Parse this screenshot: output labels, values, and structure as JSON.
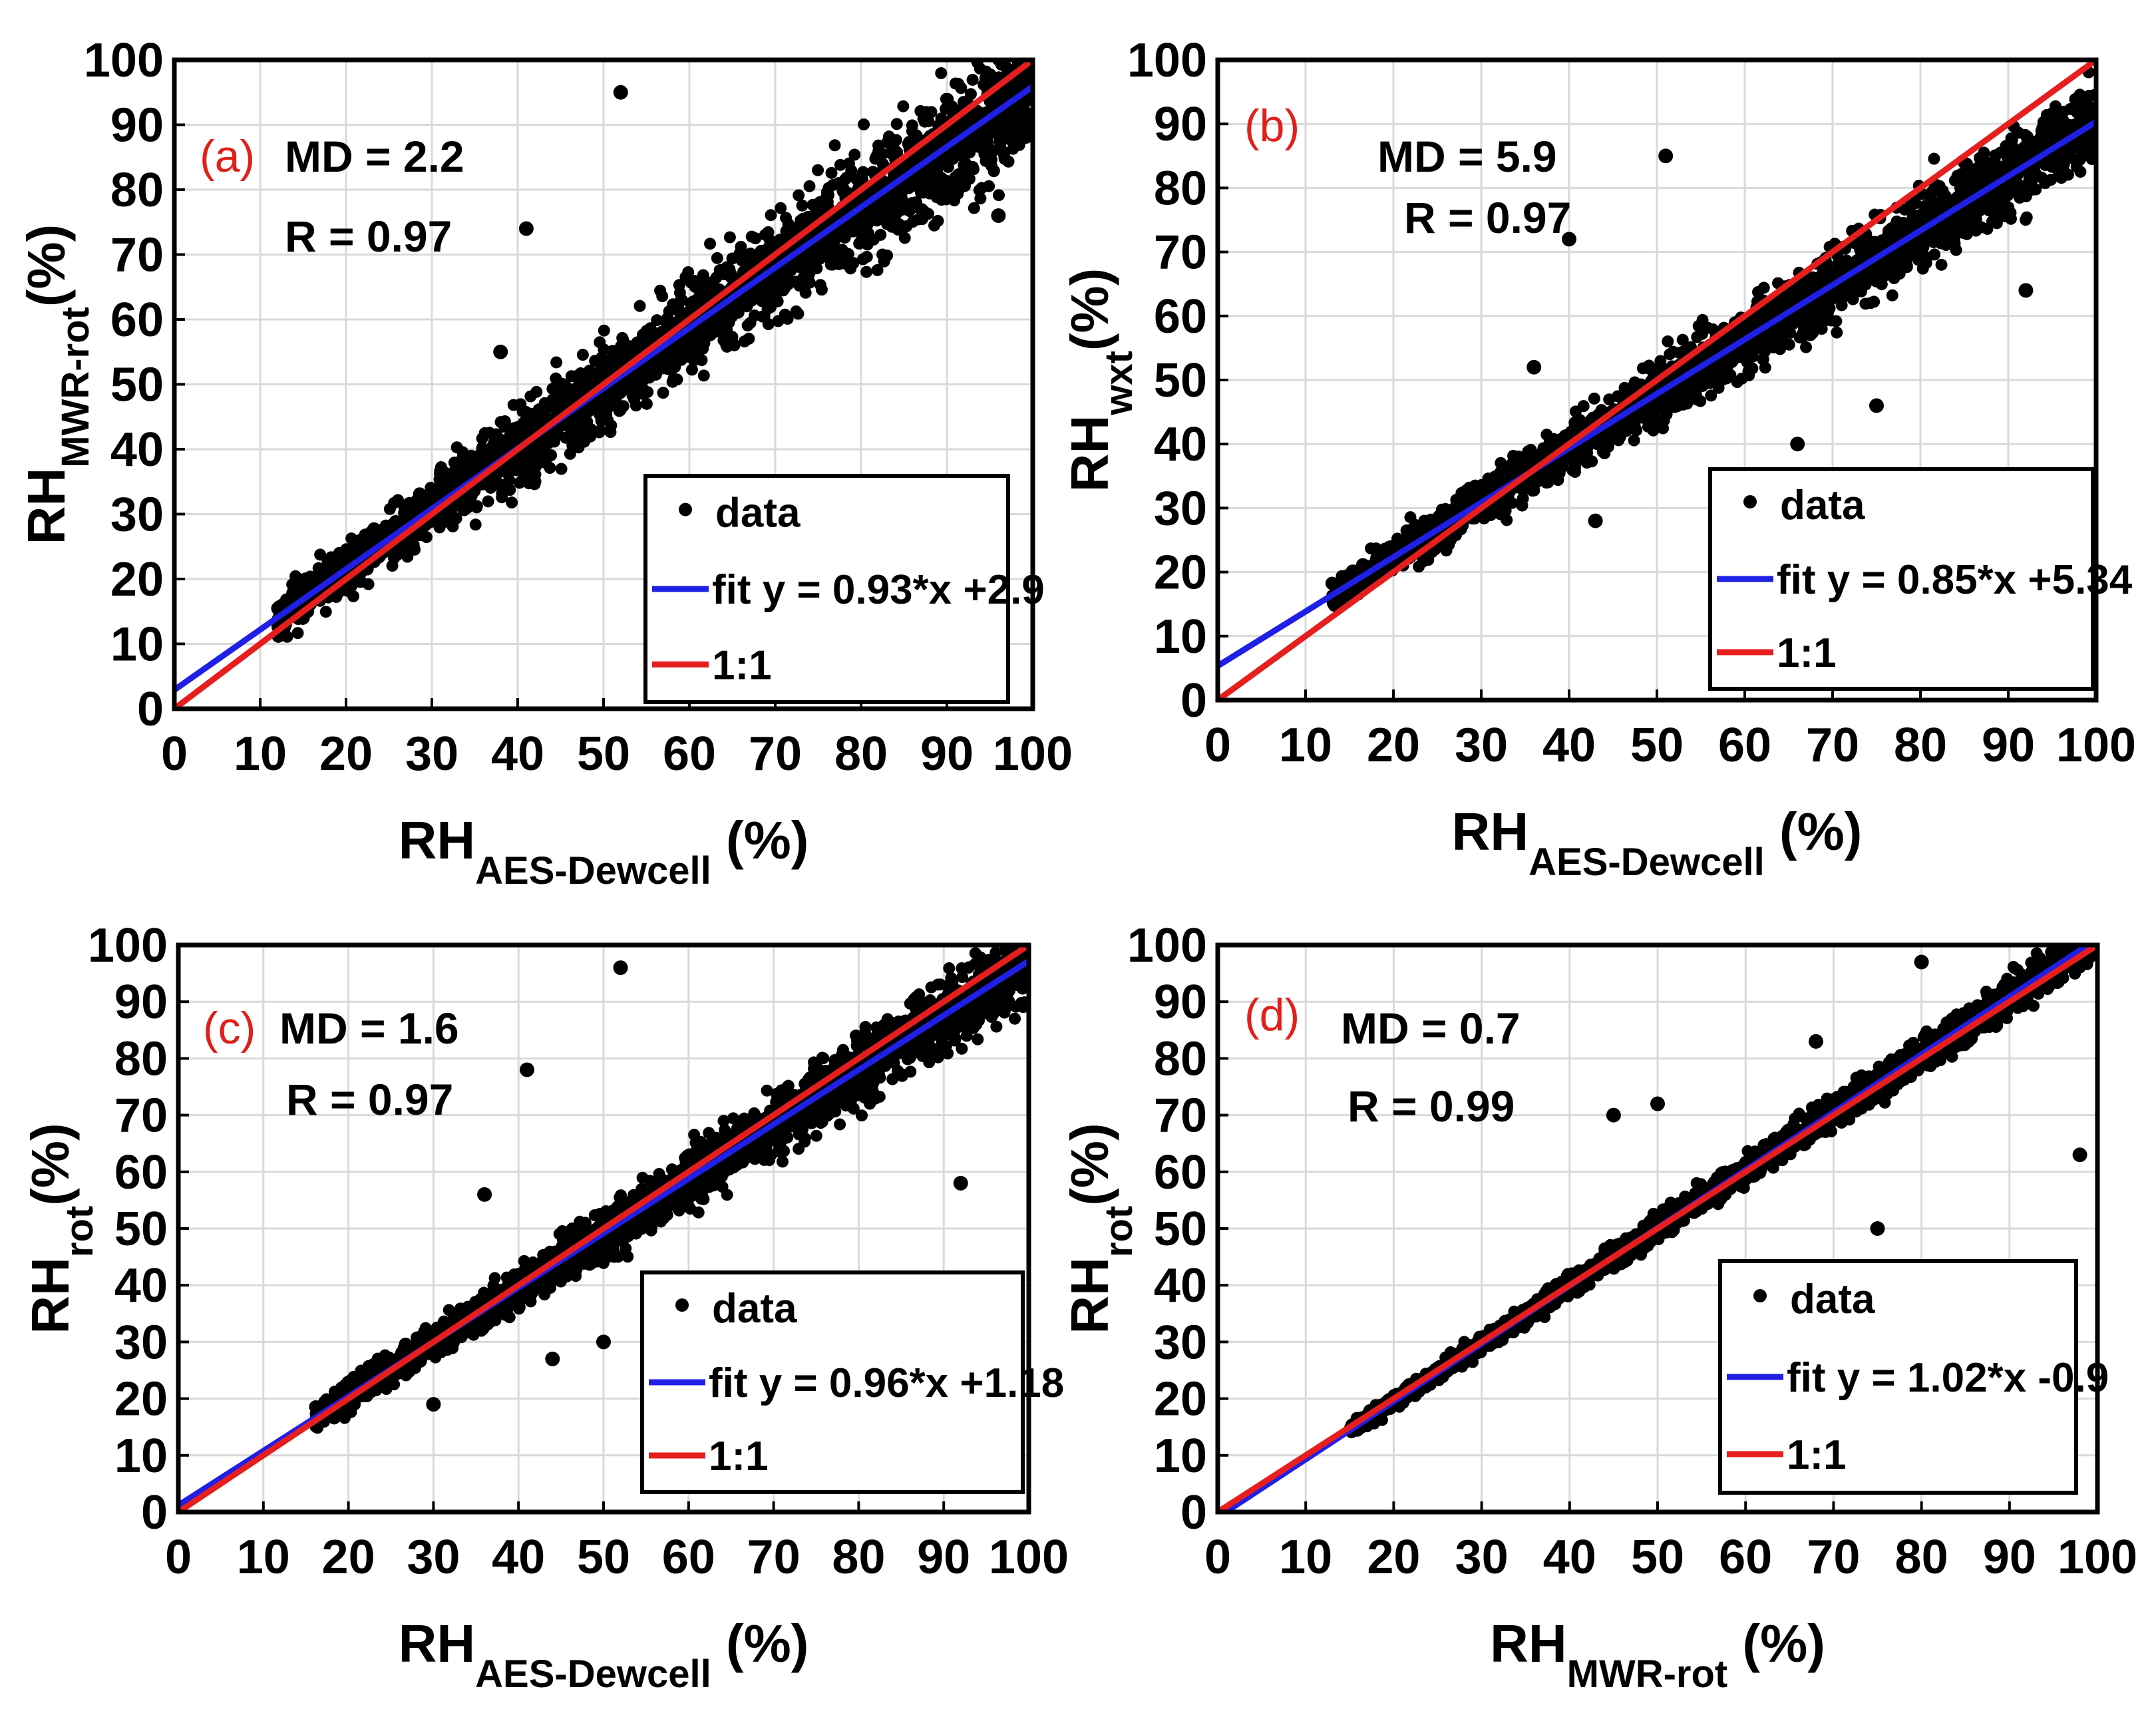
{
  "chart_data": [
    {
      "panel": "(a)",
      "type": "scatter",
      "ylabel_main": "RH",
      "ylabel_sub": "MWR-rot",
      "ylabel_unit": "(%)",
      "xlabel_main": "RH",
      "xlabel_sub": "AES-Dewcell",
      "xlabel_unit": "(%)",
      "xlim": [
        0,
        100
      ],
      "ylim": [
        0,
        100
      ],
      "xticks": [
        "0",
        "10",
        "20",
        "30",
        "40",
        "50",
        "60",
        "70",
        "80",
        "90",
        "100"
      ],
      "yticks": [
        "0",
        "10",
        "20",
        "30",
        "40",
        "50",
        "60",
        "70",
        "80",
        "90",
        "100"
      ],
      "grid": true,
      "md_text": "MD = 2.2",
      "r_text": "R = 0.97",
      "fit": {
        "slope": 0.93,
        "intercept": 2.9,
        "label": "fit y = 0.93*x +2.9"
      },
      "one_to_one_label": "1:1",
      "data_label": "data",
      "scatter_range": [
        12,
        100
      ],
      "scatter_upper_offset": 14,
      "scatter_lower_offset": -14,
      "outliers": [
        [
          52,
          95
        ],
        [
          41,
          74
        ],
        [
          38,
          55
        ],
        [
          60,
          56
        ],
        [
          96,
          76
        ]
      ]
    },
    {
      "panel": "(b)",
      "type": "scatter",
      "ylabel_main": "RH",
      "ylabel_sub": "wxt",
      "ylabel_unit": "(%)",
      "xlabel_main": "RH",
      "xlabel_sub": "AES-Dewcell",
      "xlabel_unit": "(%)",
      "xlim": [
        0,
        100
      ],
      "ylim": [
        0,
        100
      ],
      "xticks": [
        "0",
        "10",
        "20",
        "30",
        "40",
        "50",
        "60",
        "70",
        "80",
        "90",
        "100"
      ],
      "yticks": [
        "0",
        "10",
        "20",
        "30",
        "40",
        "50",
        "60",
        "70",
        "80",
        "90",
        "100"
      ],
      "grid": true,
      "md_text": "MD = 5.9",
      "r_text": "R = 0.97",
      "fit": {
        "slope": 0.85,
        "intercept": 5.34,
        "label": "fit y = 0.85*x +5.34"
      },
      "one_to_one_label": "1:1",
      "data_label": "data",
      "scatter_range": [
        13,
        100
      ],
      "scatter_upper_offset": 8,
      "scatter_lower_offset": -12,
      "outliers": [
        [
          51,
          85
        ],
        [
          40,
          72
        ],
        [
          36,
          52
        ],
        [
          43,
          28
        ],
        [
          66,
          40
        ],
        [
          75,
          46
        ],
        [
          92,
          64
        ]
      ]
    },
    {
      "panel": "(c)",
      "type": "scatter",
      "ylabel_main": "RH",
      "ylabel_sub": "rot",
      "ylabel_unit": "(%)",
      "xlabel_main": "RH",
      "xlabel_sub": "AES-Dewcell",
      "xlabel_unit": "(%)",
      "xlim": [
        0,
        100
      ],
      "ylim": [
        0,
        100
      ],
      "xticks": [
        "0",
        "10",
        "20",
        "30",
        "40",
        "50",
        "60",
        "70",
        "80",
        "90",
        "100"
      ],
      "yticks": [
        "0",
        "10",
        "20",
        "30",
        "40",
        "50",
        "60",
        "70",
        "80",
        "90",
        "100"
      ],
      "grid": true,
      "md_text": "MD = 1.6",
      "r_text": "R = 0.97",
      "fit": {
        "slope": 0.96,
        "intercept": 1.18,
        "label": "fit y = 0.96*x +1.18"
      },
      "one_to_one_label": "1:1",
      "data_label": "data",
      "scatter_range": [
        16,
        100
      ],
      "scatter_upper_offset": 10,
      "scatter_lower_offset": -10,
      "outliers": [
        [
          52,
          96
        ],
        [
          41,
          78
        ],
        [
          36,
          56
        ],
        [
          44,
          27
        ],
        [
          50,
          30
        ],
        [
          92,
          58
        ],
        [
          30,
          19
        ]
      ]
    },
    {
      "panel": "(d)",
      "type": "scatter",
      "ylabel_main": "RH",
      "ylabel_sub": "rot",
      "ylabel_unit": "(%)",
      "xlabel_main": "RH",
      "xlabel_sub": "MWR-rot",
      "xlabel_unit": "(%)",
      "xlim": [
        0,
        100
      ],
      "ylim": [
        0,
        100
      ],
      "xticks": [
        "0",
        "10",
        "20",
        "30",
        "40",
        "50",
        "60",
        "70",
        "80",
        "90",
        "100"
      ],
      "yticks": [
        "0",
        "10",
        "20",
        "30",
        "40",
        "50",
        "60",
        "70",
        "80",
        "90",
        "100"
      ],
      "grid": true,
      "md_text": "MD = 0.7",
      "r_text": "R = 0.99",
      "fit": {
        "slope": 1.02,
        "intercept": -0.9,
        "label": "fit y = 1.02*x -0.9"
      },
      "one_to_one_label": "1:1",
      "data_label": "data",
      "scatter_range": [
        15,
        100
      ],
      "scatter_upper_offset": 5,
      "scatter_lower_offset": -5,
      "outliers": [
        [
          80,
          97
        ],
        [
          75,
          50
        ],
        [
          98,
          63
        ],
        [
          50,
          72
        ],
        [
          45,
          70
        ],
        [
          68,
          83
        ]
      ]
    }
  ],
  "colors": {
    "fit": "#1f1fe6",
    "one_to_one": "#e61e1e",
    "data": "#000000",
    "grid": "#d9d9d9",
    "panel_letter": "#e0201a"
  }
}
